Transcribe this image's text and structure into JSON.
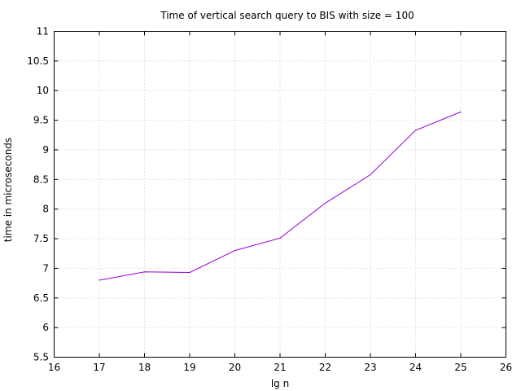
{
  "chart_data": {
    "type": "line",
    "title": "Time of vertical search query to BIS with size = 100",
    "xlabel": "lg n",
    "ylabel": "time in microseconds",
    "xlim": [
      16,
      26
    ],
    "ylim": [
      5.5,
      11
    ],
    "xticks": [
      "16",
      "17",
      "18",
      "19",
      "20",
      "21",
      "22",
      "23",
      "24",
      "25",
      "26"
    ],
    "yticks": [
      "5.5",
      "6",
      "6.5",
      "7",
      "7.5",
      "8",
      "8.5",
      "9",
      "9.5",
      "10",
      "10.5",
      "11"
    ],
    "grid": true,
    "legend": "none",
    "series": [
      {
        "color": "#9400d3",
        "x": [
          17,
          18,
          19,
          20,
          21,
          22,
          23,
          24,
          25
        ],
        "y": [
          6.8,
          6.94,
          6.93,
          7.3,
          7.51,
          8.1,
          8.58,
          9.33,
          9.64
        ]
      }
    ]
  }
}
